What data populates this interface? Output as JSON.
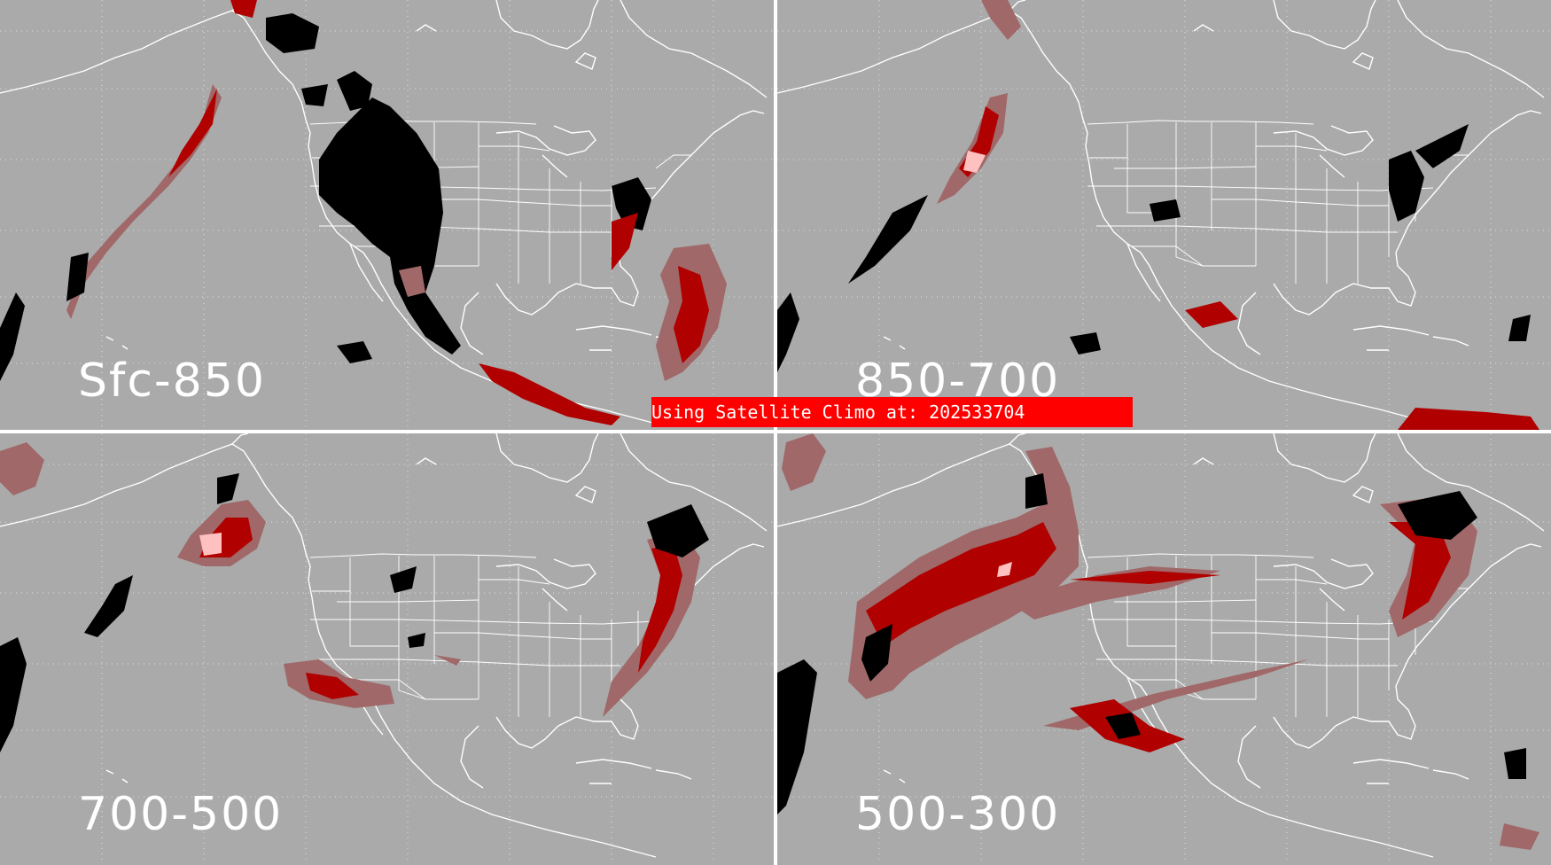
{
  "panels": [
    {
      "id": "p1",
      "label": "Sfc-850"
    },
    {
      "id": "p2",
      "label": "850-700"
    },
    {
      "id": "p3",
      "label": "700-500"
    },
    {
      "id": "p4",
      "label": "500-300"
    }
  ],
  "banner": {
    "text": "Using Satellite Climo at: 202533704"
  },
  "colors": {
    "background": "#aaaaaa",
    "boundaries": "#ffffff",
    "banner": "#ff0000",
    "missing": "#000000",
    "low": "#a06868",
    "mid": "#b00000",
    "high": "#ff0000",
    "peak": "#ffc0c0"
  }
}
